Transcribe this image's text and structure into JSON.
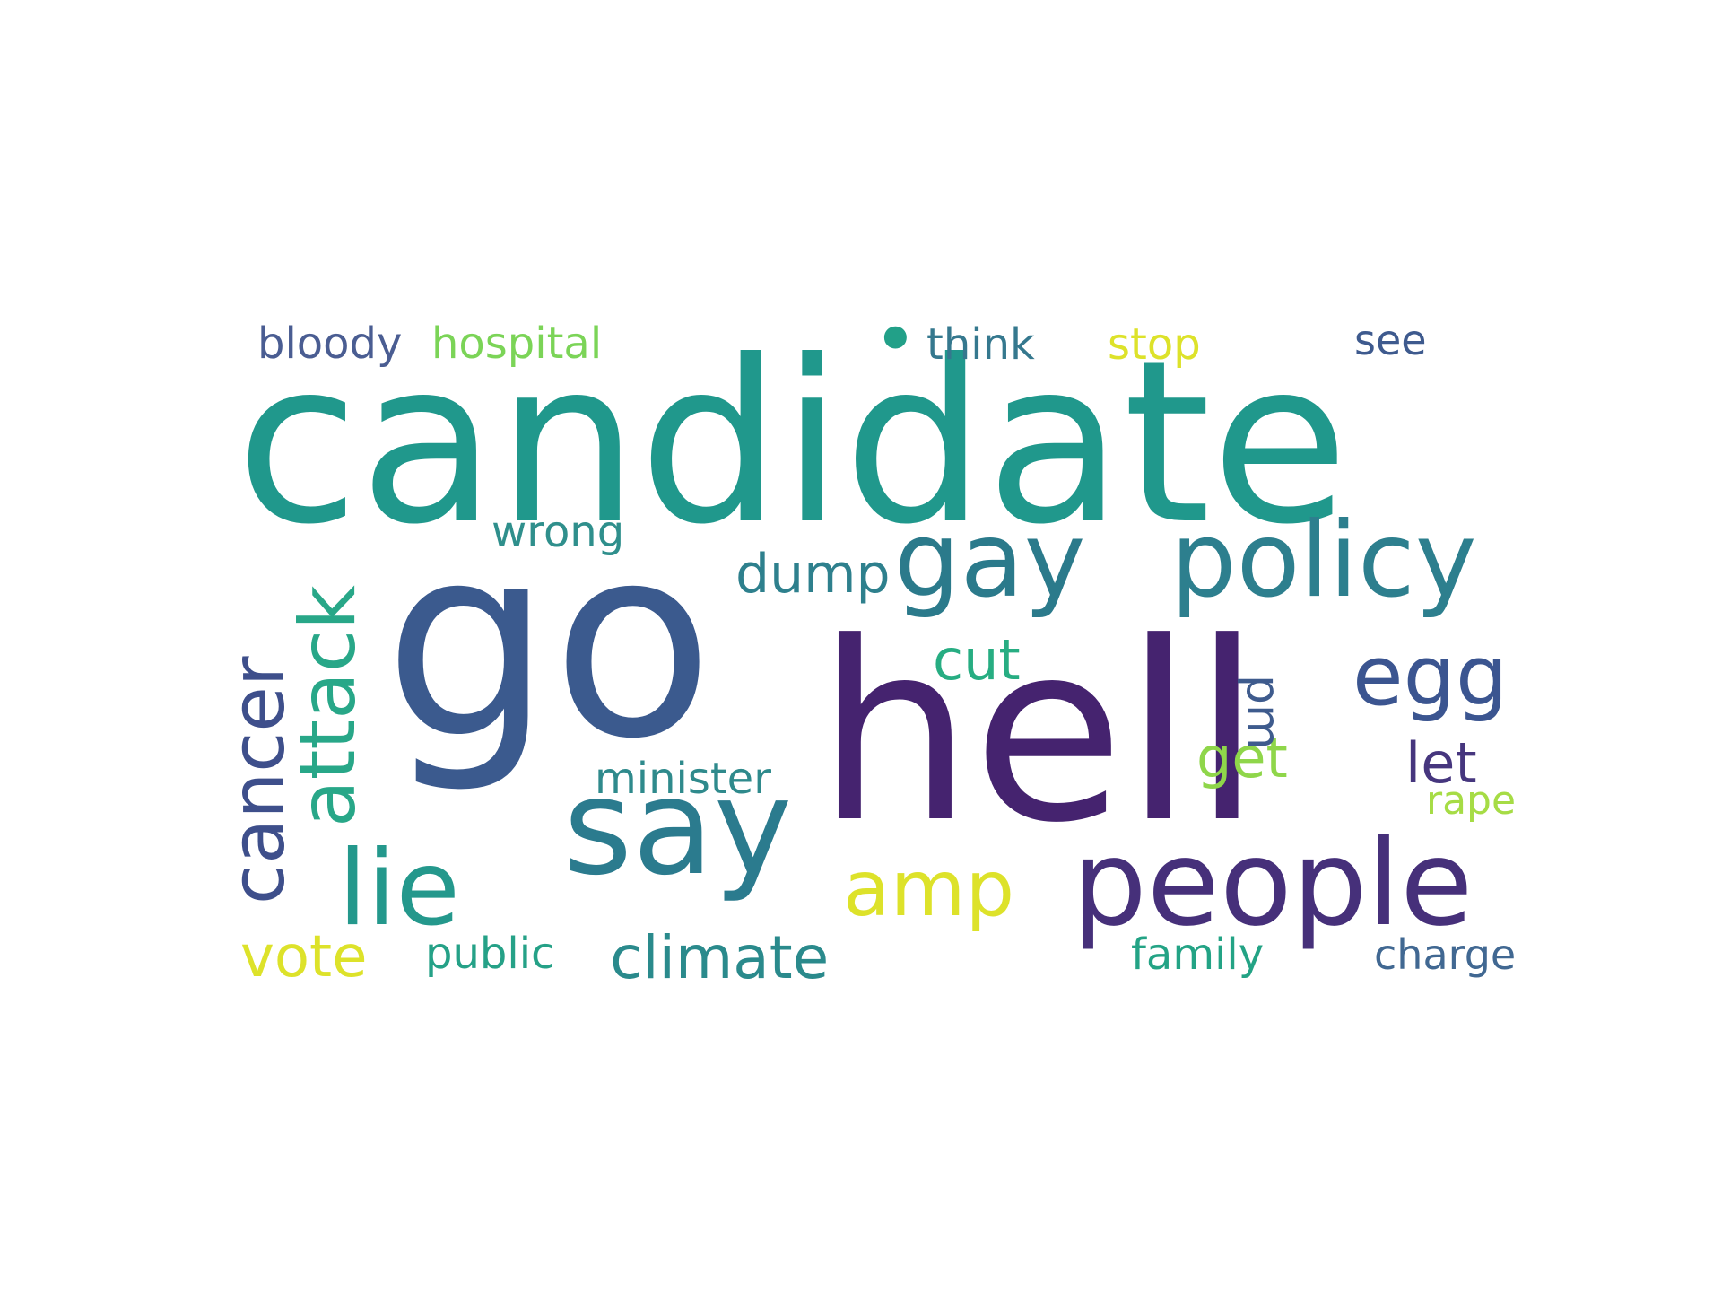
{
  "words": [
    {
      "text": "candidate",
      "color": "#20988c"
    },
    {
      "text": "go",
      "color": "#3b5a8e"
    },
    {
      "text": "hell",
      "color": "#45236f"
    },
    {
      "text": "say",
      "color": "#2b7b8e"
    },
    {
      "text": "people",
      "color": "#46307a"
    },
    {
      "text": "policy",
      "color": "#2d7f8e"
    },
    {
      "text": "gay",
      "color": "#2b7a8b"
    },
    {
      "text": "lie",
      "color": "#24988c"
    },
    {
      "text": "egg",
      "color": "#3b5590"
    },
    {
      "text": "attack",
      "color": "#28a788"
    },
    {
      "text": "cancer",
      "color": "#3e4f8b"
    },
    {
      "text": "amp",
      "color": "#dde22a"
    },
    {
      "text": "climate",
      "color": "#2a8a8c"
    },
    {
      "text": "vote",
      "color": "#dde22a"
    },
    {
      "text": "dump",
      "color": "#2e808d"
    },
    {
      "text": "cut",
      "color": "#27ad82"
    },
    {
      "text": "get",
      "color": "#8fd64a"
    },
    {
      "text": "let",
      "color": "#46367e"
    },
    {
      "text": "pm",
      "color": "#3e5b8d"
    },
    {
      "text": "minister",
      "color": "#2f8a8c"
    },
    {
      "text": "wrong",
      "color": "#2f8f8c"
    },
    {
      "text": "public",
      "color": "#25a187"
    },
    {
      "text": "family",
      "color": "#23a385"
    },
    {
      "text": "charge",
      "color": "#416892"
    },
    {
      "text": "rape",
      "color": "#a6dc45"
    },
    {
      "text": "stop",
      "color": "#dde22a"
    },
    {
      "text": "think",
      "color": "#35788e"
    },
    {
      "text": "see",
      "color": "#3e5a8e"
    },
    {
      "text": "hospital",
      "color": "#7bd457"
    },
    {
      "text": "bloody",
      "color": "#4a5d92"
    },
    {
      "text": "•",
      "color": "#22a088"
    }
  ]
}
